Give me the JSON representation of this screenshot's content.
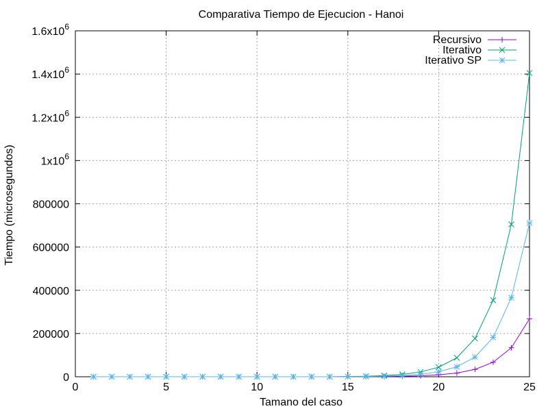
{
  "chart_data": {
    "type": "line",
    "title": "Comparativa Tiempo de Ejecucion - Hanoi",
    "xlabel": "Tamano del caso",
    "ylabel": "Tiempo (microsegundos)",
    "xlim": [
      0,
      25
    ],
    "ylim": [
      0,
      1600000
    ],
    "grid": true,
    "legend_position": "top-right",
    "x_ticks": [
      {
        "value": 0,
        "label": "0"
      },
      {
        "value": 5,
        "label": "5"
      },
      {
        "value": 10,
        "label": "10"
      },
      {
        "value": 15,
        "label": "15"
      },
      {
        "value": 20,
        "label": "20"
      },
      {
        "value": 25,
        "label": "25"
      }
    ],
    "y_ticks": [
      {
        "value": 0,
        "label": "0"
      },
      {
        "value": 200000,
        "label": "200000"
      },
      {
        "value": 400000,
        "label": "400000"
      },
      {
        "value": 600000,
        "label": "600000"
      },
      {
        "value": 800000,
        "label": "800000"
      },
      {
        "value": 1000000,
        "label": "1x10",
        "sup": "6"
      },
      {
        "value": 1200000,
        "label": "1.2x10",
        "sup": "6"
      },
      {
        "value": 1400000,
        "label": "1.4x10",
        "sup": "6"
      },
      {
        "value": 1600000,
        "label": "1.6x10",
        "sup": "6"
      }
    ],
    "x": [
      1,
      2,
      3,
      4,
      5,
      6,
      7,
      8,
      9,
      10,
      11,
      12,
      13,
      14,
      15,
      16,
      17,
      18,
      19,
      20,
      21,
      22,
      23,
      24,
      25
    ],
    "series": [
      {
        "name": "Recursivo",
        "color": "#9400d3",
        "marker": "plus",
        "values": [
          0,
          0,
          0,
          0,
          0,
          0,
          0,
          0,
          0,
          0,
          0,
          0,
          0,
          0,
          300,
          600,
          1100,
          2200,
          4500,
          9000,
          17000,
          34000,
          67000,
          134000,
          268000
        ]
      },
      {
        "name": "Iterativo",
        "color": "#009e73",
        "marker": "cross",
        "values": [
          0,
          0,
          0,
          0,
          0,
          0,
          0,
          0,
          0,
          0,
          0,
          0,
          0,
          0,
          1000,
          2500,
          5500,
          11000,
          22000,
          44000,
          88000,
          177000,
          354000,
          705000,
          1405000
        ]
      },
      {
        "name": "Iterativo SP",
        "color": "#56b4e9",
        "marker": "star",
        "values": [
          0,
          0,
          0,
          0,
          0,
          0,
          0,
          0,
          0,
          0,
          0,
          0,
          0,
          0,
          600,
          1300,
          2800,
          5700,
          11500,
          23000,
          46000,
          91000,
          182000,
          366000,
          711000
        ]
      }
    ]
  }
}
